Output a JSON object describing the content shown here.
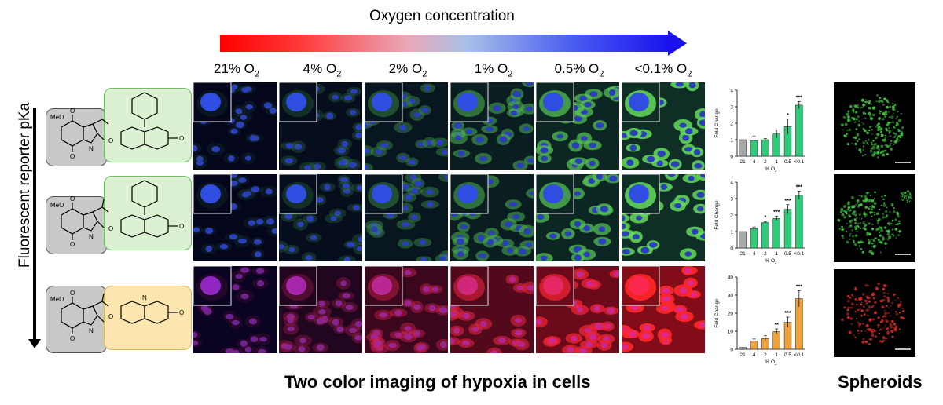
{
  "header": {
    "title": "Oxygen concentration"
  },
  "columns": [
    {
      "pre": "21% O",
      "sub": "2"
    },
    {
      "pre": "4% O",
      "sub": "2"
    },
    {
      "pre": "2% O",
      "sub": "2"
    },
    {
      "pre": "1% O",
      "sub": "2"
    },
    {
      "pre": "0.5% O",
      "sub": "2"
    },
    {
      "pre": "<0.1% O",
      "sub": "2"
    }
  ],
  "left_axis": {
    "label": "Fluorescent reporter pKa"
  },
  "structures": [
    {
      "methoxy": "MeO",
      "nitrogen": "N",
      "ketone": "O",
      "ether": "O",
      "acceptor": "O"
    },
    {
      "methoxy": "MeO",
      "nitrogen": "N",
      "ketone": "O",
      "ether": "O",
      "acceptor": "O"
    },
    {
      "methoxy": "MeO",
      "nitrogen": "N",
      "ketone": "O",
      "ether": "O",
      "acceptor": "O",
      "ring_n": "N"
    }
  ],
  "footer": {
    "main_title": "Two color imaging of hypoxia in cells",
    "side_title": "Spheroids"
  },
  "colors": {
    "green_bar": "#2ecc7a",
    "orange_bar": "#f0a23a",
    "gray_bar": "#a8a8a8"
  },
  "chart_data": [
    {
      "type": "bar",
      "categories": [
        "21",
        "4",
        "2",
        "1",
        "0.5",
        "<0.1"
      ],
      "values": [
        1.0,
        0.95,
        1.0,
        1.35,
        1.8,
        3.1
      ],
      "errors": [
        0.0,
        0.25,
        0.08,
        0.25,
        0.45,
        0.22
      ],
      "significance": [
        "",
        "",
        "",
        "",
        "*",
        "***"
      ],
      "ylabel": "Fold Change",
      "xlabel_pre": "% O",
      "xlabel_sub": "2",
      "ylim": [
        0,
        4
      ],
      "yticks": [
        "0",
        "1",
        "2",
        "3",
        "4"
      ],
      "color": "#2ecc7a"
    },
    {
      "type": "bar",
      "categories": [
        "21",
        "4",
        "2",
        "1",
        "0.5",
        "<0.1"
      ],
      "values": [
        1.0,
        1.18,
        1.55,
        1.8,
        2.35,
        3.2
      ],
      "errors": [
        0.0,
        0.1,
        0.06,
        0.12,
        0.28,
        0.25
      ],
      "significance": [
        "",
        "",
        "*",
        "***",
        "***",
        "***"
      ],
      "ylabel": "Fold Change",
      "xlabel_pre": "% O",
      "xlabel_sub": "2",
      "ylim": [
        0,
        4
      ],
      "yticks": [
        "0",
        "1",
        "2",
        "3",
        "4"
      ],
      "color": "#2ecc7a"
    },
    {
      "type": "bar",
      "categories": [
        "21",
        "4",
        "2",
        "1",
        "0.5",
        "<0.1"
      ],
      "values": [
        1.0,
        4.5,
        6.0,
        9.8,
        15.0,
        28.0
      ],
      "errors": [
        0.0,
        1.2,
        1.5,
        1.5,
        2.8,
        4.5
      ],
      "significance": [
        "",
        "",
        "",
        "**",
        "***",
        "***"
      ],
      "ylabel": "Fold Change",
      "xlabel_pre": "% O",
      "xlabel_sub": "2",
      "ylim": [
        0,
        40
      ],
      "yticks": [
        "0",
        "10",
        "20",
        "30",
        "40"
      ],
      "color": "#f0a23a"
    }
  ]
}
